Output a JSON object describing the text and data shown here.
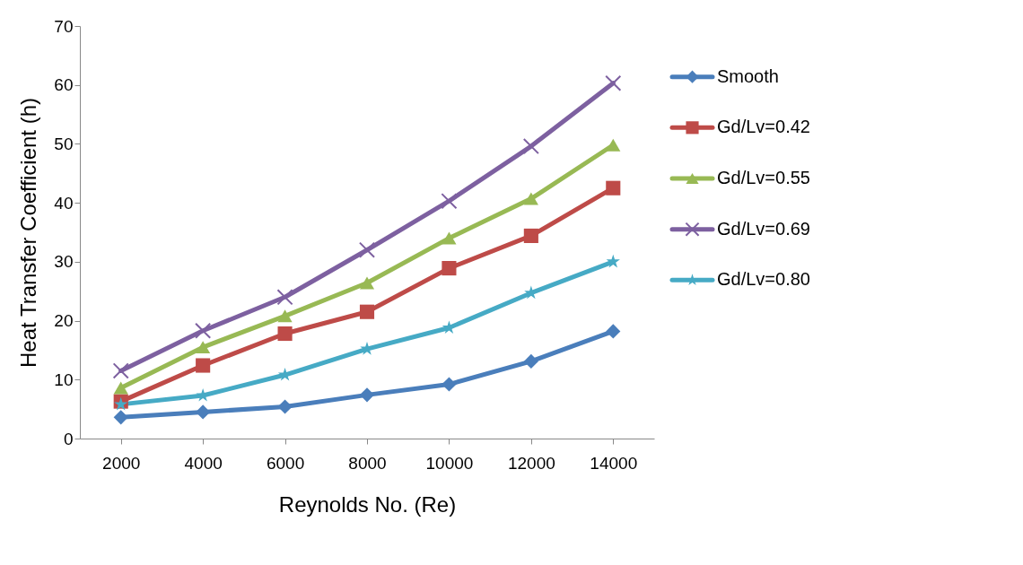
{
  "chart_data": {
    "type": "line",
    "xlabel": "Reynolds  No. (Re)",
    "ylabel": "Heat Transfer Coefficient (h)",
    "categories": [
      "2000",
      "4000",
      "6000",
      "8000",
      "10000",
      "12000",
      "14000"
    ],
    "ylim": [
      0,
      70
    ],
    "yticks": [
      0,
      10,
      20,
      30,
      40,
      50,
      60,
      70
    ],
    "grid": false,
    "legend": "right",
    "line_style": "solid",
    "series": [
      {
        "name": "Smooth",
        "color": "#4a7ebb",
        "marker": "diamond",
        "values": [
          3.6,
          4.5,
          5.4,
          7.4,
          9.2,
          13.1,
          18.2
        ]
      },
      {
        "name": "Gd/Lv=0.42",
        "color": "#be4b48",
        "marker": "square",
        "values": [
          6.3,
          12.4,
          17.8,
          21.5,
          28.9,
          34.4,
          42.5
        ]
      },
      {
        "name": "Gd/Lv=0.55",
        "color": "#98b954",
        "marker": "triangle",
        "values": [
          8.6,
          15.5,
          20.8,
          26.4,
          34.0,
          40.7,
          49.8
        ]
      },
      {
        "name": "Gd/Lv=0.69",
        "color": "#7d60a0",
        "marker": "cross",
        "values": [
          11.5,
          18.3,
          24.0,
          32.0,
          40.3,
          49.6,
          60.3
        ]
      },
      {
        "name": "Gd/Lv=0.80",
        "color": "#46aac5",
        "marker": "star",
        "values": [
          5.8,
          7.3,
          10.8,
          15.2,
          18.8,
          24.7,
          30.0
        ]
      }
    ]
  }
}
